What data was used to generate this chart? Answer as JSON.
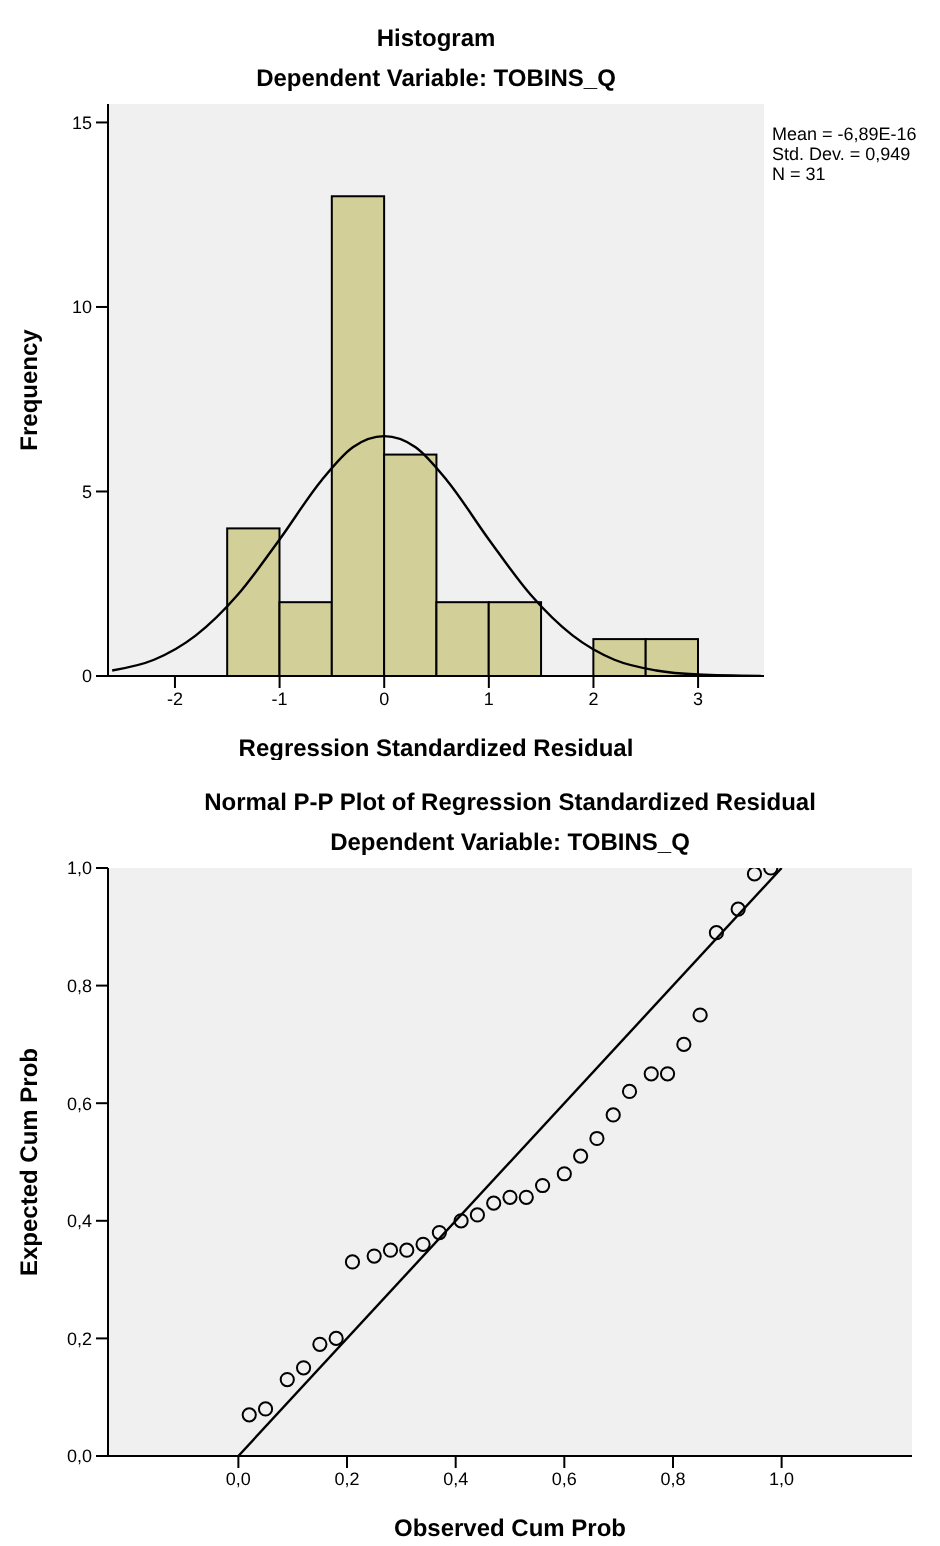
{
  "chart_data": [
    {
      "type": "histogram",
      "title": "Histogram",
      "subtitle": "Dependent Variable: TOBINS_Q",
      "xlabel": "Regression Standardized Residual",
      "ylabel": "Frequency",
      "bins": [
        -1.5,
        -1,
        -0.5,
        0,
        0.5,
        1,
        1.5,
        2,
        2.5,
        3
      ],
      "series": [
        {
          "color": "#d3cf98",
          "values": [
            4,
            2,
            13,
            6,
            2,
            2,
            0,
            1,
            1
          ]
        },
        {
          "type": "line",
          "color": "#000000",
          "x": [
            -2.6,
            -2.2,
            -1.8,
            -1.4,
            -1.0,
            -0.6,
            -0.3,
            0,
            0.3,
            0.6,
            1.0,
            1.4,
            1.8,
            2.2,
            2.6,
            3.0,
            3.6
          ],
          "values": [
            0.15,
            0.44,
            1.1,
            2.2,
            3.7,
            5.3,
            6.2,
            6.5,
            6.2,
            5.3,
            3.7,
            2.2,
            1.1,
            0.44,
            0.15,
            0.04,
            0.0
          ]
        }
      ],
      "xlim": [
        -2.64,
        3.63
      ],
      "ylim": [
        0,
        15.5
      ],
      "xticks": [
        -2,
        -1,
        0,
        1,
        2,
        3
      ],
      "yticks": [
        0,
        5,
        10,
        15
      ],
      "annotations": [
        "Mean = -6,89E-16",
        "Std. Dev. = 0,949",
        "N = 31"
      ]
    },
    {
      "type": "scatter",
      "title": "Normal P-P Plot of Regression Standardized Residual",
      "subtitle": "Dependent Variable: TOBINS_Q",
      "xlabel": "Observed Cum Prob",
      "ylabel": "Expected Cum Prob",
      "series": [
        {
          "marker": "circle",
          "color": "#000000",
          "x": [
            0.02,
            0.05,
            0.09,
            0.12,
            0.15,
            0.18,
            0.21,
            0.25,
            0.28,
            0.31,
            0.34,
            0.37,
            0.41,
            0.44,
            0.47,
            0.5,
            0.53,
            0.56,
            0.6,
            0.63,
            0.66,
            0.69,
            0.72,
            0.76,
            0.79,
            0.82,
            0.85,
            0.88,
            0.92,
            0.95,
            0.98
          ],
          "values": [
            0.07,
            0.08,
            0.13,
            0.15,
            0.19,
            0.2,
            0.33,
            0.34,
            0.35,
            0.35,
            0.36,
            0.38,
            0.4,
            0.41,
            0.43,
            0.44,
            0.44,
            0.46,
            0.48,
            0.51,
            0.54,
            0.58,
            0.62,
            0.65,
            0.65,
            0.7,
            0.75,
            0.89,
            0.93,
            0.99,
            1.0
          ]
        },
        {
          "type": "line",
          "color": "#000000",
          "x": [
            0,
            1
          ],
          "values": [
            0,
            1
          ]
        }
      ],
      "xlim": [
        -0.24,
        1.24
      ],
      "ylim": [
        0,
        1
      ],
      "xticks": [
        {
          "value": 0,
          "label": "0,0"
        },
        {
          "value": 0.2,
          "label": "0,2"
        },
        {
          "value": 0.4,
          "label": "0,4"
        },
        {
          "value": 0.6,
          "label": "0,6"
        },
        {
          "value": 0.8,
          "label": "0,8"
        },
        {
          "value": 1,
          "label": "1,0"
        }
      ],
      "yticks": [
        {
          "value": 0,
          "label": "0,0"
        },
        {
          "value": 0.2,
          "label": "0,2"
        },
        {
          "value": 0.4,
          "label": "0,4"
        },
        {
          "value": 0.6,
          "label": "0,6"
        },
        {
          "value": 0.8,
          "label": "0,8"
        },
        {
          "value": 1,
          "label": "1,0"
        }
      ]
    }
  ]
}
